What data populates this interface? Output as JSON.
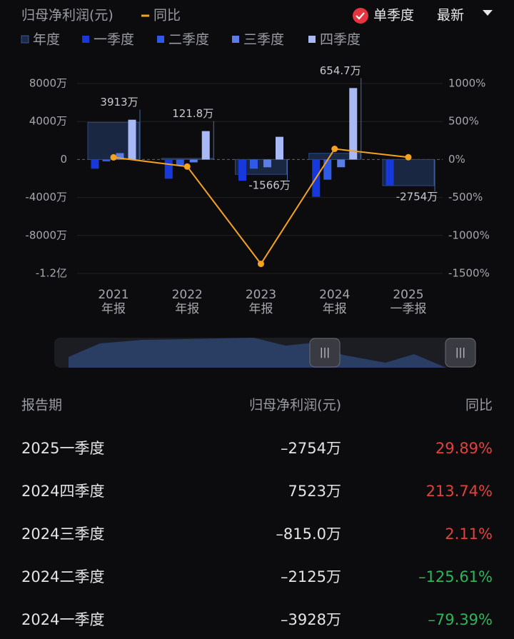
{
  "chart_data": {
    "type": "combo",
    "title": "归母净利润(元)",
    "line_legend": "同比",
    "mode": "单季度",
    "sort": "最新",
    "categories": [
      [
        "2021",
        "年报"
      ],
      [
        "2022",
        "年报"
      ],
      [
        "2023",
        "年报"
      ],
      [
        "2024",
        "年报"
      ],
      [
        "2025",
        "一季报"
      ]
    ],
    "series": [
      {
        "name": "年度",
        "color": "#1b2a48",
        "values": [
          3913,
          121.8,
          -1566,
          654.7,
          -2754
        ],
        "value_labels": [
          "3913万",
          "121.8万",
          "-1566万",
          "654.7万",
          "-2754万"
        ]
      },
      {
        "name": "一季度",
        "color": "#1739dc",
        "values": [
          -970,
          -2020,
          -2240,
          -3928,
          -2754
        ]
      },
      {
        "name": "二季度",
        "color": "#2f5ae8",
        "values": [
          -200,
          -600,
          -970,
          -2125,
          null
        ]
      },
      {
        "name": "三季度",
        "color": "#5b7ee6",
        "values": [
          670,
          -300,
          -820,
          -815,
          null
        ]
      },
      {
        "name": "四季度",
        "color": "#a9b9f6",
        "values": [
          4190,
          2990,
          2390,
          7523,
          null
        ]
      },
      {
        "name": "同比",
        "color": "#f5a21f",
        "axis": "y2",
        "values": [
          28,
          -93,
          -1374,
          140,
          29.89
        ]
      }
    ],
    "ylim": [
      -12000,
      8000
    ],
    "yticks": [
      {
        "value": 8000,
        "label": "8000万"
      },
      {
        "value": 4000,
        "label": "4000万"
      },
      0,
      {
        "value": -4000,
        "label": "-4000万"
      },
      {
        "value": -8000,
        "label": "-8000万"
      },
      {
        "value": -12000,
        "label": "-1.2亿"
      }
    ],
    "y2lim": [
      -1500,
      1000
    ],
    "y2ticks": [
      {
        "value": 1000,
        "label": "1000%"
      },
      {
        "value": 500,
        "label": "500%"
      },
      {
        "value": 0,
        "label": "0%"
      },
      {
        "value": -500,
        "label": "-500%"
      },
      {
        "value": -1000,
        "label": "-1000%"
      },
      {
        "value": -1500,
        "label": "-1500%"
      }
    ],
    "grid": true
  },
  "table": {
    "headers": [
      "报告期",
      "归母净利润(元)",
      "同比"
    ],
    "rows": [
      [
        "2025一季度",
        "–2754万",
        "29.89%"
      ],
      [
        "2024四季度",
        "7523万",
        "213.74%"
      ],
      [
        "2024三季度",
        "–815.0万",
        "2.11%"
      ],
      [
        "2024二季度",
        "–2125万",
        "–125.61%"
      ],
      [
        "2024一季度",
        "–3928万",
        "–79.39%"
      ]
    ]
  }
}
